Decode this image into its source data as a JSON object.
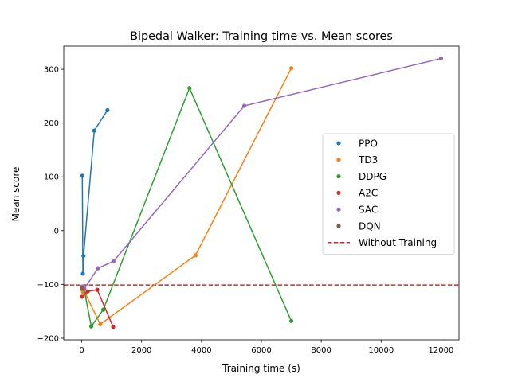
{
  "chart_data": {
    "type": "line",
    "title": "Bipedal Walker: Training time vs. Mean scores",
    "xlabel": "Training time (s)",
    "ylabel": "Mean score",
    "xlim": [
      -600,
      12600
    ],
    "ylim": [
      -203,
      343
    ],
    "xticks": [
      0,
      2000,
      4000,
      6000,
      8000,
      10000,
      12000
    ],
    "yticks": [
      -200,
      -100,
      0,
      100,
      200,
      300
    ],
    "grid": false,
    "legend_position": "center-right",
    "series": [
      {
        "name": "PPO",
        "color": "#1f77b4",
        "x": [
          20,
          40,
          60,
          420,
          860
        ],
        "y": [
          102,
          -80,
          -47,
          186,
          224
        ]
      },
      {
        "name": "TD3",
        "color": "#ff7f0e",
        "x": [
          10,
          50,
          120,
          620,
          3800,
          7000
        ],
        "y": [
          -110,
          -115,
          -117,
          -174,
          -46,
          302
        ]
      },
      {
        "name": "DDPG",
        "color": "#2ca02c",
        "x": [
          30,
          80,
          320,
          720,
          3600,
          7000
        ],
        "y": [
          -108,
          -109,
          -178,
          -147,
          265,
          -168
        ]
      },
      {
        "name": "A2C",
        "color": "#d62728",
        "x": [
          10,
          200,
          520,
          1050
        ],
        "y": [
          -123,
          -113,
          -110,
          -179
        ]
      },
      {
        "name": "SAC",
        "color": "#9467bd",
        "x": [
          20,
          90,
          540,
          1060,
          5430,
          12000
        ],
        "y": [
          -104,
          -108,
          -70,
          -57,
          232,
          320
        ]
      },
      {
        "name": "DQN",
        "color": "#8c564b",
        "x": [
          15
        ],
        "y": [
          -107
        ]
      }
    ],
    "reference_line": {
      "name": "Without Training",
      "y": -101,
      "color": "#d62728",
      "style": "dashed"
    }
  }
}
